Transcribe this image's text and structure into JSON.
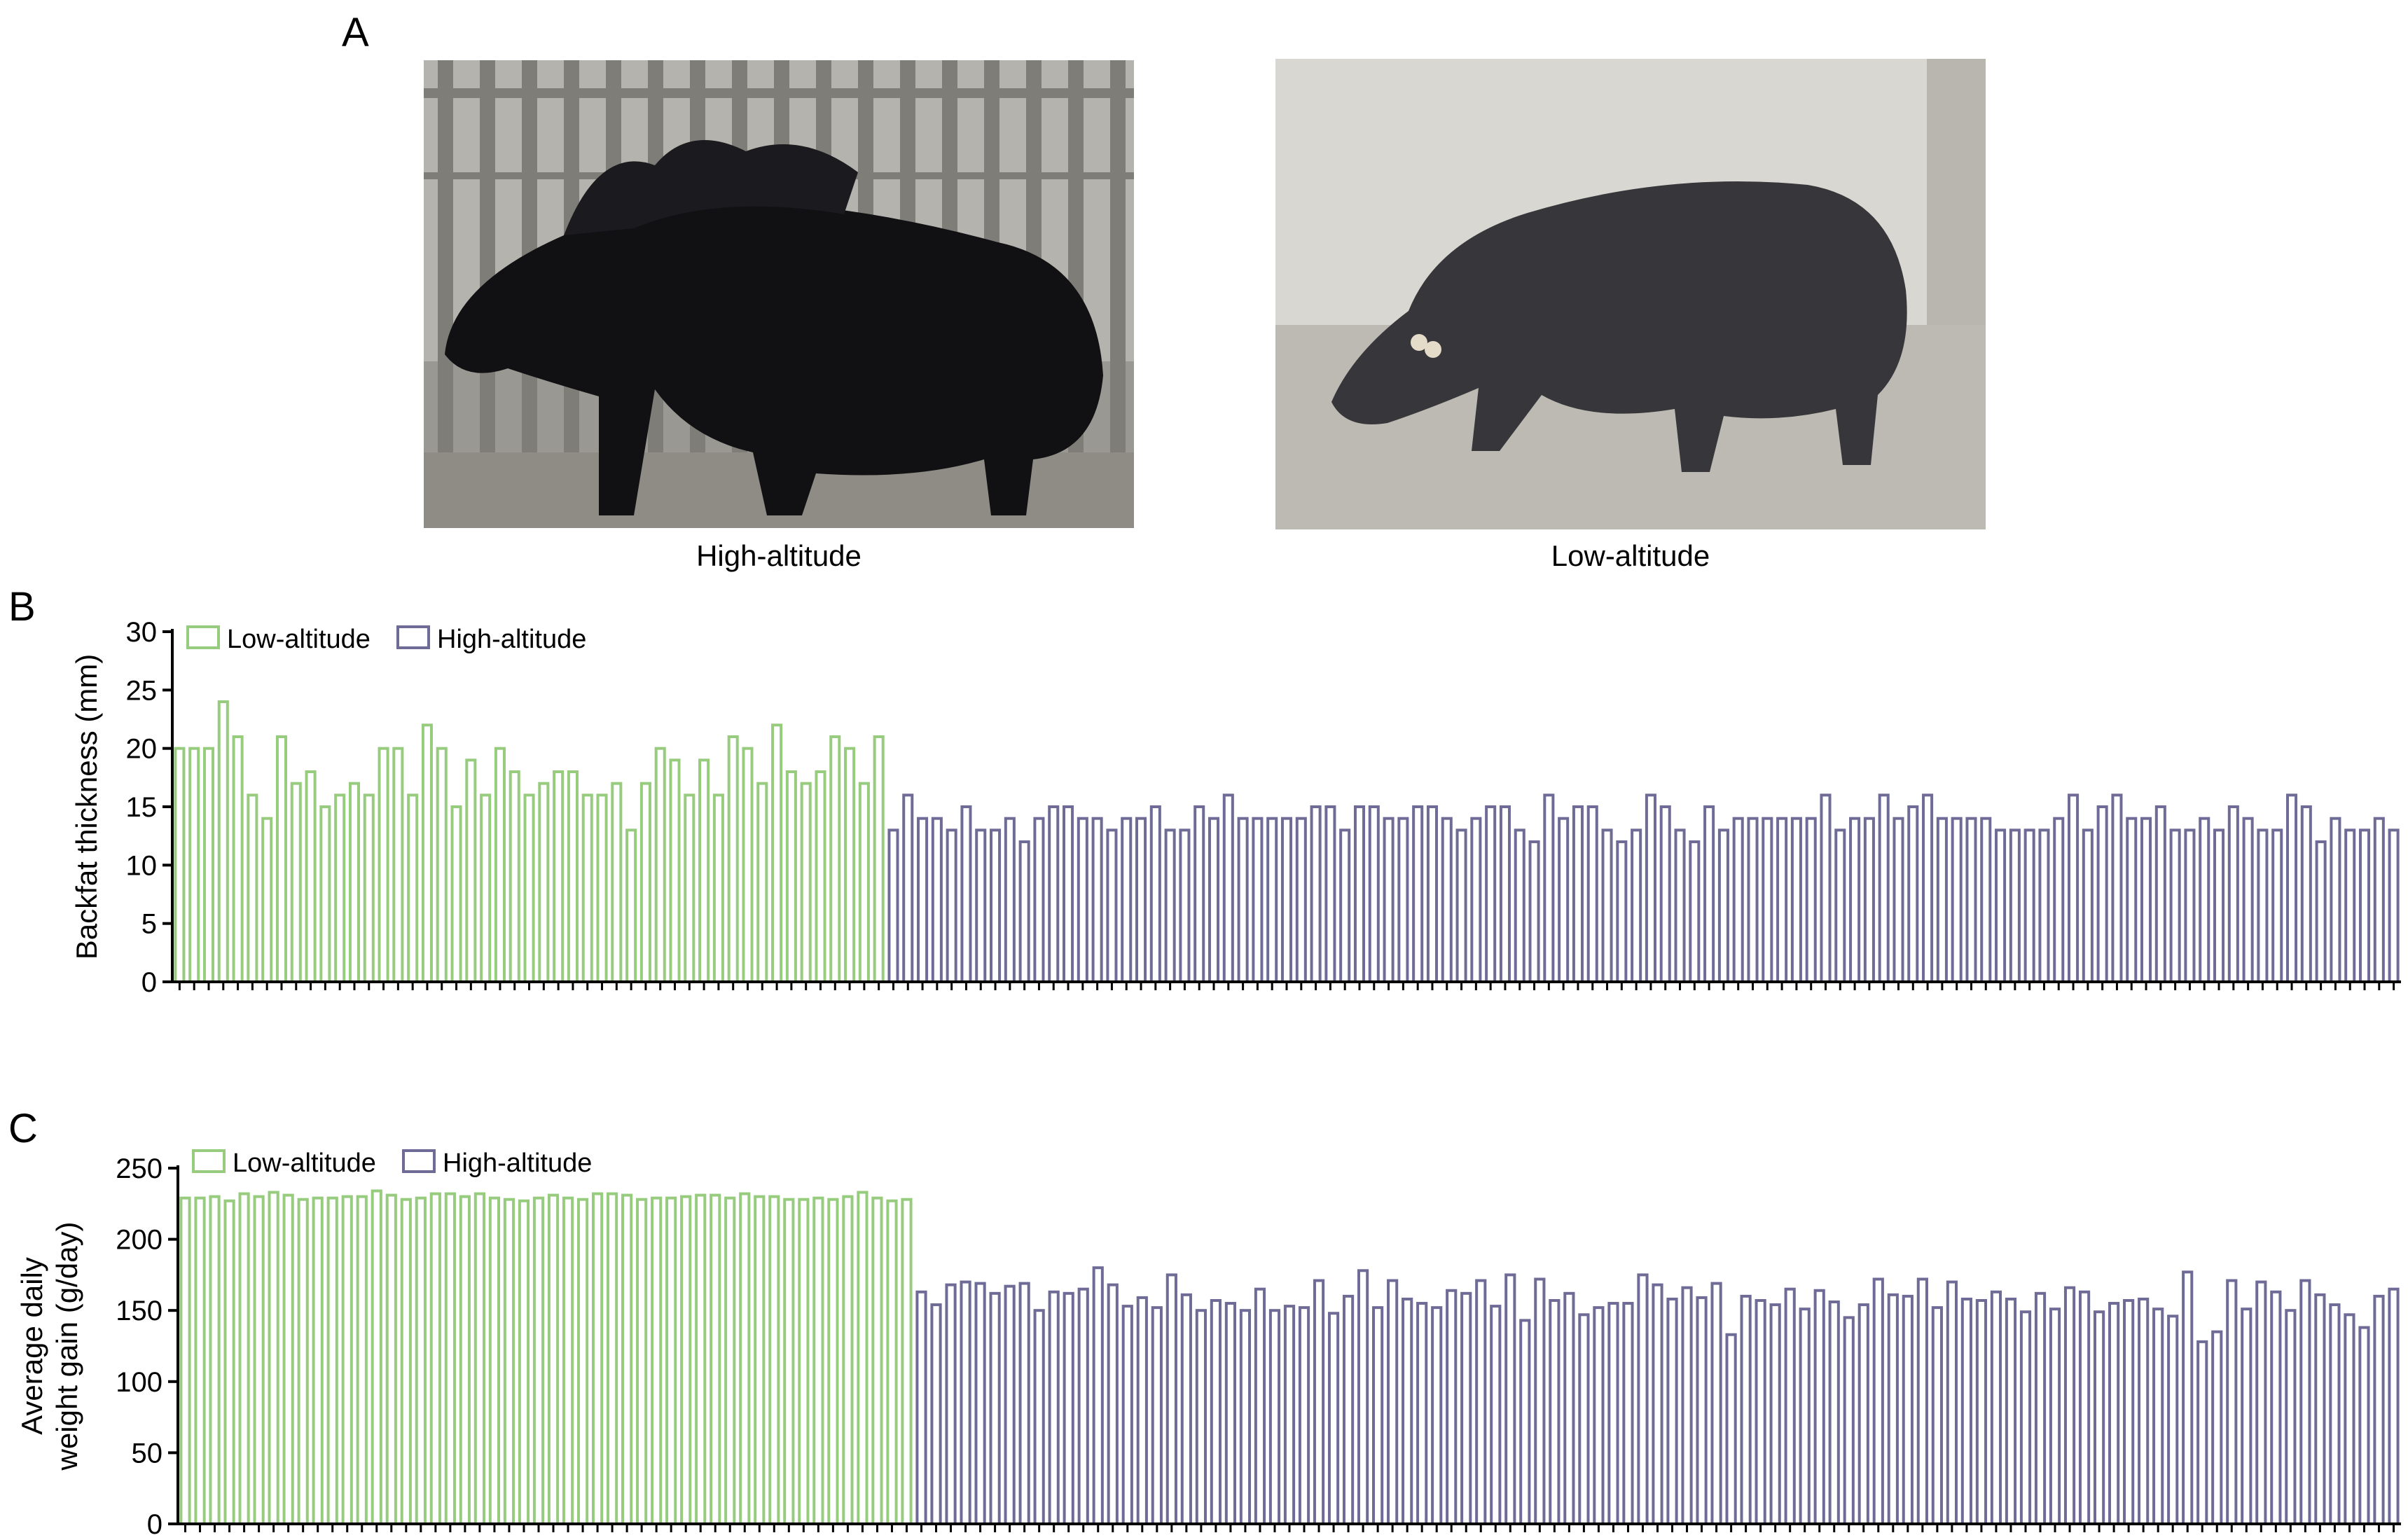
{
  "panels": {
    "a": {
      "letter": "A",
      "photos": [
        {
          "caption": "High-altitude"
        },
        {
          "caption": "Low-altitude"
        }
      ]
    },
    "b": {
      "letter": "B"
    },
    "c": {
      "letter": "C"
    }
  },
  "colors": {
    "low": "#97cc7f",
    "high": "#6e6b96"
  },
  "chart_data": [
    {
      "type": "bar",
      "ylabel": "Backfat thickness (mm)",
      "ylim": [
        0,
        30
      ],
      "yticks": [
        0,
        5,
        10,
        15,
        20,
        25,
        30
      ],
      "legend": {
        "placement": "top-left",
        "entries": [
          "Low-altitude",
          "High-altitude"
        ]
      },
      "series": [
        {
          "name": "Low-altitude",
          "color": "#97cc7f",
          "values": [
            20,
            20,
            20,
            24,
            21,
            16,
            14,
            21,
            17,
            18,
            15,
            16,
            17,
            16,
            20,
            20,
            16,
            22,
            20,
            15,
            19,
            16,
            20,
            18,
            16,
            17,
            18,
            18,
            16,
            16,
            17,
            13,
            17,
            20,
            19,
            16,
            19,
            16,
            21,
            20,
            17,
            22,
            18,
            17,
            18,
            21,
            20,
            17,
            21
          ]
        },
        {
          "name": "High-altitude",
          "color": "#6e6b96",
          "values": [
            13,
            16,
            14,
            14,
            13,
            15,
            13,
            13,
            14,
            12,
            14,
            15,
            15,
            14,
            14,
            13,
            14,
            14,
            15,
            13,
            13,
            15,
            14,
            16,
            14,
            14,
            14,
            14,
            14,
            15,
            15,
            13,
            15,
            15,
            14,
            14,
            15,
            15,
            14,
            13,
            14,
            15,
            15,
            13,
            12,
            16,
            14,
            15,
            15,
            13,
            12,
            13,
            16,
            15,
            13,
            12,
            15,
            13,
            14,
            14,
            14,
            14,
            14,
            14,
            16,
            13,
            14,
            14,
            16,
            14,
            15,
            16,
            14,
            14,
            14,
            14,
            13,
            13,
            13,
            13,
            14,
            16,
            13,
            15,
            16,
            14,
            14,
            15,
            13,
            13,
            14,
            13,
            15,
            14,
            13,
            13,
            16,
            15,
            12,
            14,
            13,
            13,
            14,
            13
          ]
        }
      ]
    },
    {
      "type": "bar",
      "ylabel": "Average daily weight gain (g/day)",
      "ylabel_lines": [
        "Average daily",
        "weight gain (g/day)"
      ],
      "ylim": [
        0,
        250
      ],
      "yticks": [
        0,
        50,
        100,
        150,
        200,
        250
      ],
      "legend": {
        "placement": "top-left",
        "entries": [
          "Low-altitude",
          "High-altitude"
        ]
      },
      "series": [
        {
          "name": "Low-altitude",
          "color": "#97cc7f",
          "values": [
            229,
            229,
            230,
            227,
            232,
            230,
            233,
            231,
            228,
            229,
            229,
            230,
            230,
            234,
            231,
            228,
            229,
            232,
            232,
            230,
            232,
            229,
            228,
            227,
            229,
            231,
            229,
            228,
            232,
            232,
            231,
            228,
            229,
            229,
            230,
            231,
            231,
            229,
            232,
            230,
            230,
            228,
            228,
            229,
            228,
            230,
            233,
            229,
            227,
            228
          ]
        },
        {
          "name": "High-altitude",
          "color": "#6e6b96",
          "values": [
            163,
            154,
            168,
            170,
            169,
            162,
            167,
            169,
            150,
            163,
            162,
            165,
            180,
            168,
            153,
            159,
            152,
            175,
            161,
            150,
            157,
            155,
            150,
            165,
            150,
            153,
            152,
            171,
            148,
            160,
            178,
            152,
            171,
            158,
            155,
            152,
            164,
            162,
            171,
            153,
            175,
            143,
            172,
            157,
            162,
            147,
            152,
            155,
            155,
            175,
            168,
            158,
            166,
            159,
            169,
            133,
            160,
            157,
            154,
            165,
            151,
            164,
            156,
            145,
            154,
            172,
            161,
            160,
            172,
            152,
            170,
            158,
            157,
            163,
            158,
            149,
            162,
            151,
            166,
            163,
            149,
            155,
            157,
            158,
            151,
            146,
            177,
            128,
            135,
            171,
            151,
            170,
            163,
            150,
            171,
            161,
            154,
            147,
            138,
            160,
            165
          ]
        }
      ]
    }
  ]
}
